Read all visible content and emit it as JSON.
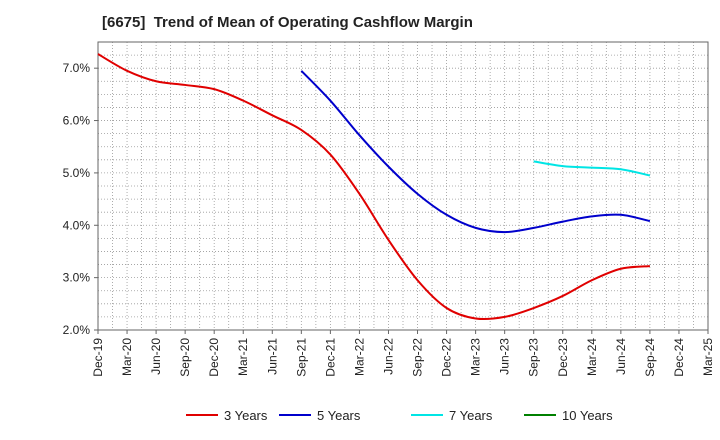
{
  "chart_data": {
    "type": "line",
    "title": "[6675]  Trend of Mean of Operating Cashflow Margin",
    "xlabel": "",
    "ylabel": "",
    "x_ticks": [
      "Dec-19",
      "Mar-20",
      "Jun-20",
      "Sep-20",
      "Dec-20",
      "Mar-21",
      "Jun-21",
      "Sep-21",
      "Dec-21",
      "Mar-22",
      "Jun-22",
      "Sep-22",
      "Dec-22",
      "Mar-23",
      "Jun-23",
      "Sep-23",
      "Dec-23",
      "Mar-24",
      "Jun-24",
      "Sep-24",
      "Dec-24",
      "Mar-25"
    ],
    "y_ticks": [
      "2.0%",
      "3.0%",
      "4.0%",
      "5.0%",
      "6.0%",
      "7.0%"
    ],
    "ylim": [
      2.0,
      7.5
    ],
    "grid": true,
    "legend_position": "bottom",
    "series": [
      {
        "name": "3 Years",
        "color": "#e00000",
        "x": [
          "Dec-19",
          "Mar-20",
          "Jun-20",
          "Sep-20",
          "Dec-20",
          "Mar-21",
          "Jun-21",
          "Sep-21",
          "Dec-21",
          "Mar-22",
          "Jun-22",
          "Sep-22",
          "Dec-22",
          "Mar-23",
          "Jun-23",
          "Sep-23",
          "Dec-23",
          "Mar-24",
          "Jun-24",
          "Sep-24"
        ],
        "values": [
          7.27,
          6.95,
          6.75,
          6.68,
          6.6,
          6.38,
          6.1,
          5.82,
          5.35,
          4.6,
          3.72,
          2.95,
          2.42,
          2.22,
          2.25,
          2.42,
          2.65,
          2.95,
          3.17,
          3.22
        ]
      },
      {
        "name": "5 Years",
        "color": "#0000cc",
        "x": [
          "Sep-21",
          "Dec-21",
          "Mar-22",
          "Jun-22",
          "Sep-22",
          "Dec-22",
          "Mar-23",
          "Jun-23",
          "Sep-23",
          "Dec-23",
          "Mar-24",
          "Jun-24",
          "Sep-24"
        ],
        "values": [
          6.95,
          6.38,
          5.72,
          5.12,
          4.6,
          4.2,
          3.95,
          3.87,
          3.95,
          4.07,
          4.17,
          4.2,
          4.08
        ]
      },
      {
        "name": "7 Years",
        "color": "#00e5e5",
        "x": [
          "Sep-23",
          "Dec-23",
          "Mar-24",
          "Jun-24",
          "Sep-24"
        ],
        "values": [
          5.22,
          5.13,
          5.1,
          5.07,
          4.95
        ]
      },
      {
        "name": "10 Years",
        "color": "#008000",
        "x": [],
        "values": []
      }
    ]
  }
}
